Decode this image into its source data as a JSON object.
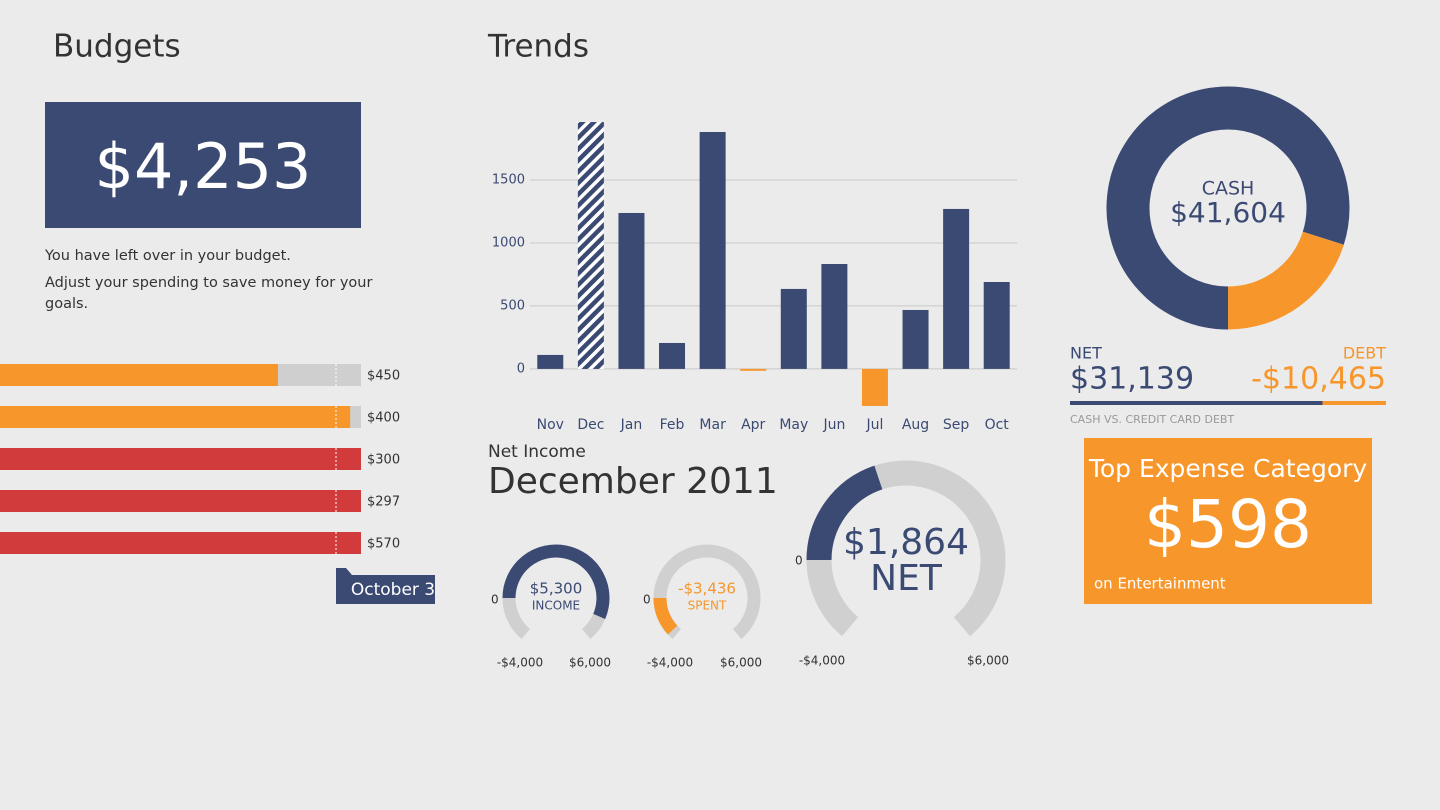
{
  "budgets": {
    "title": "Budgets",
    "remaining": "$4,253",
    "message": "You have left over in your budget.",
    "advice": "Adjust your spending to save money for your goals.",
    "date_marker": "October 3",
    "bars": [
      {
        "label": "$450",
        "spent_percent": 77,
        "color": "#f7962a"
      },
      {
        "label": "$400",
        "spent_percent": 97,
        "color": "#f7962a"
      },
      {
        "label": "$300",
        "spent_percent": 100,
        "color": "#d13b3b"
      },
      {
        "label": "$297",
        "spent_percent": 100,
        "color": "#d13b3b"
      },
      {
        "label": "$570",
        "spent_percent": 100,
        "color": "#d13b3b"
      }
    ]
  },
  "trends": {
    "title": "Trends"
  },
  "chart_data": {
    "type": "bar",
    "categories": [
      "Nov",
      "Dec",
      "Jan",
      "Feb",
      "Mar",
      "Apr",
      "May",
      "Jun",
      "Jul",
      "Aug",
      "Sep",
      "Oct"
    ],
    "values": [
      111,
      1960,
      1238,
      206,
      1881,
      -15,
      635,
      833,
      -294,
      468,
      1270,
      690
    ],
    "hatched": [
      false,
      true,
      false,
      false,
      false,
      false,
      false,
      false,
      false,
      false,
      false,
      false
    ],
    "color": "#3b4a73",
    "negative_color": "#f7962a",
    "ylim": [
      -350,
      2000
    ],
    "yticks": [
      0,
      500,
      1000,
      1500
    ],
    "grid": true
  },
  "net_income": {
    "title": "Net Income",
    "period": "December 2011",
    "gauges": [
      {
        "name": "INCOME",
        "value": 5300,
        "value_label": "$5,300",
        "color": "#3b4a73",
        "zero": 0,
        "range": [
          {
            "value": -4000,
            "label": "-$4,000"
          },
          {
            "value": 6000,
            "label": "$6,000"
          }
        ]
      },
      {
        "name": "SPENT",
        "value": -3436,
        "value_label": "-$3,436",
        "color": "#f7962a",
        "zero": 0,
        "range": [
          {
            "value": -4000,
            "label": "-$4,000"
          },
          {
            "value": 6000,
            "label": "$6,000"
          }
        ]
      },
      {
        "name": "NET",
        "value": 1864,
        "value_label": "$1,864",
        "color": "#3b4a73",
        "zero": 0,
        "range": [
          {
            "value": -4000,
            "label": "-$4,000"
          },
          {
            "value": 6000,
            "label": "$6,000"
          }
        ]
      }
    ]
  },
  "accounts": {
    "cash": {
      "name": "CASH",
      "value": 41604,
      "value_label": "$41,604",
      "color": "#3b4a73"
    },
    "net": {
      "name": "NET",
      "value": 31139,
      "value_label": "$31,139"
    },
    "debt": {
      "name": "DEBT",
      "value": -10465,
      "value_label": "-$10,465",
      "color": "#f7962a"
    },
    "caption": "CASH VS. CREDIT CARD DEBT"
  },
  "top_expense": {
    "title": "Top Expense Category",
    "amount": "$598",
    "category": "on Entertainment"
  }
}
